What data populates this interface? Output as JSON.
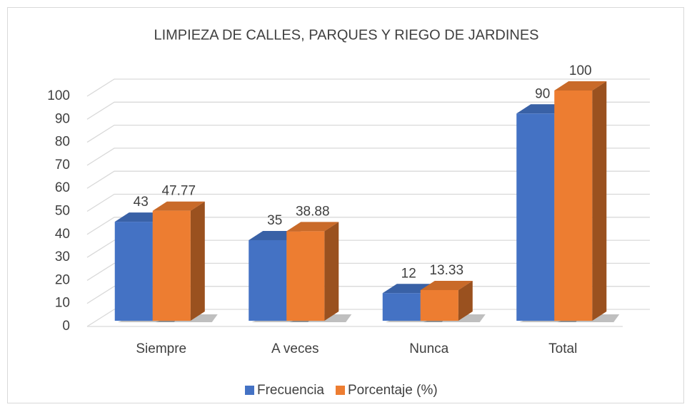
{
  "chart_data": {
    "type": "bar3d",
    "title": "LIMPIEZA DE CALLES, PARQUES Y RIEGO DE JARDINES",
    "categories": [
      "Siempre",
      "A veces",
      "Nunca",
      "Total"
    ],
    "series": [
      {
        "name": "Frecuencia",
        "color": "#4472c4",
        "values": [
          43,
          35,
          12,
          90
        ]
      },
      {
        "name": "Porcentaje (%)",
        "color": "#ed7d31",
        "values": [
          47.77,
          38.88,
          13.33,
          100
        ]
      }
    ],
    "ylim": [
      0,
      100
    ],
    "yticks": [
      0,
      10,
      20,
      30,
      40,
      50,
      60,
      70,
      80,
      90,
      100
    ],
    "grid": true,
    "legend": "bottom"
  }
}
